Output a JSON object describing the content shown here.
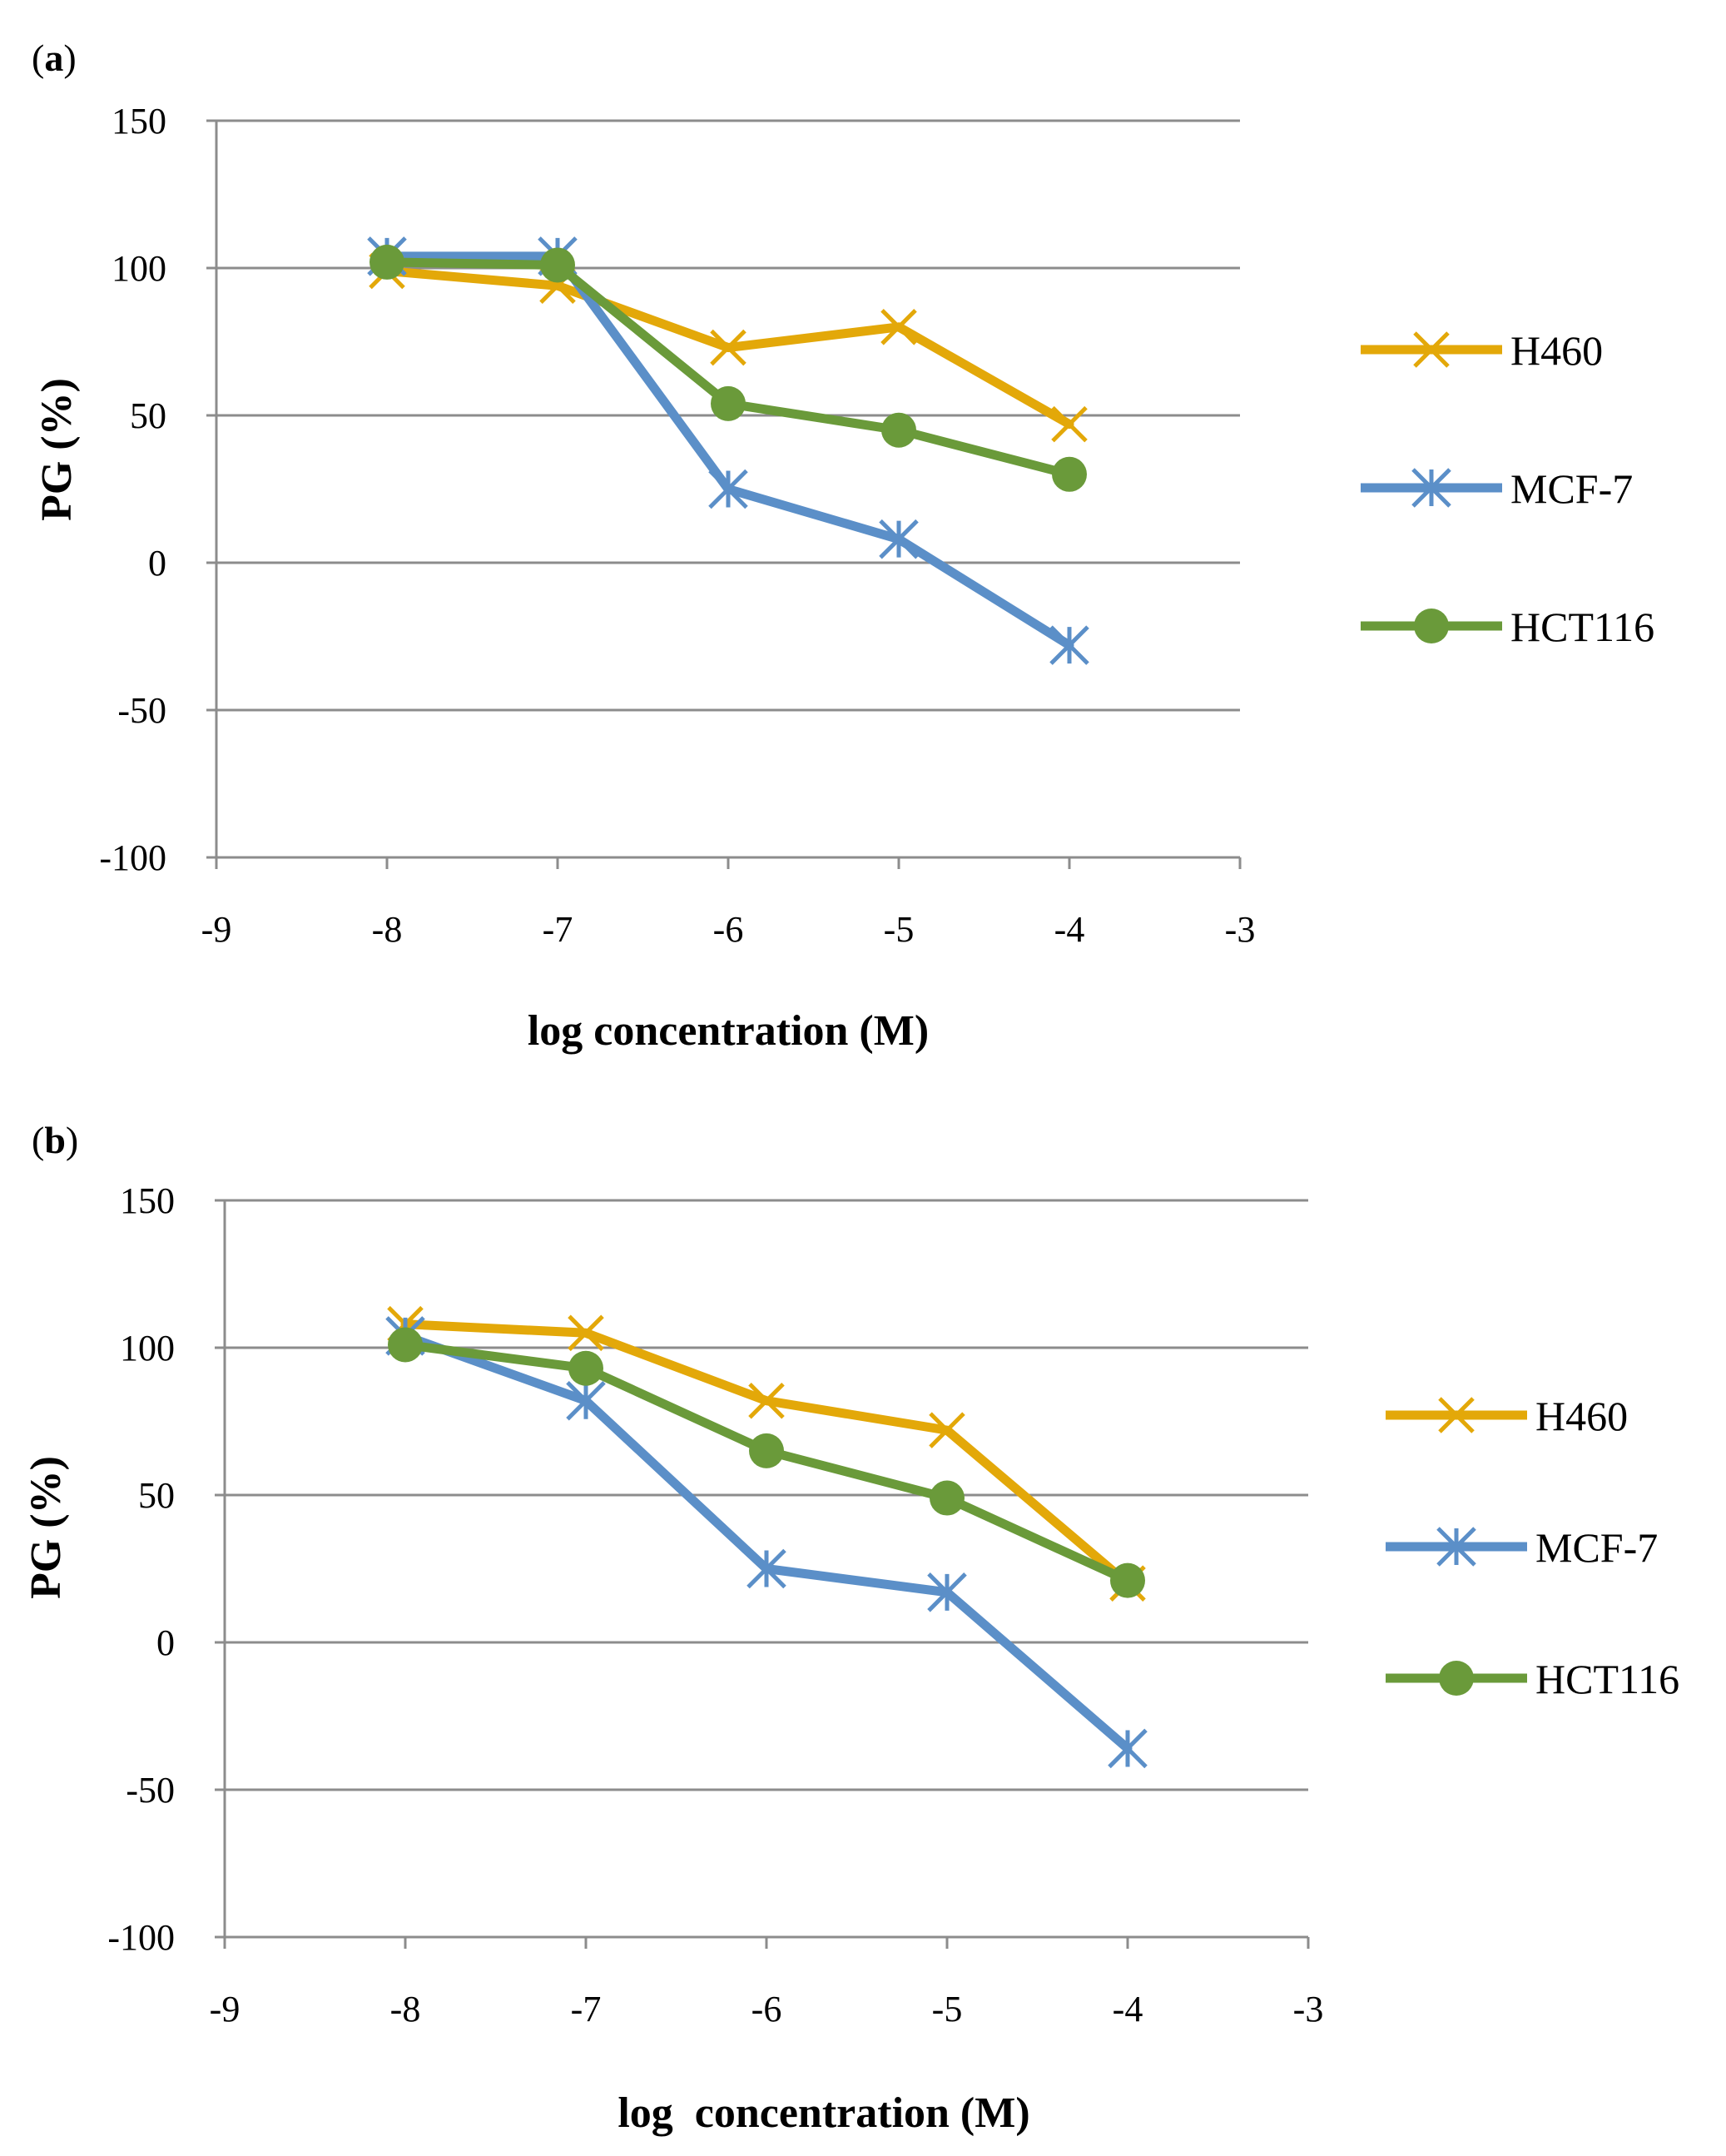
{
  "chart_data": [
    {
      "type": "line",
      "panel_label_open": "(",
      "panel_label_letter": "a",
      "panel_label_close": ")",
      "xlabel": "log concentration (M)",
      "ylabel": "PG (%)",
      "xlim": [
        -9,
        -3
      ],
      "ylim": [
        -100,
        150
      ],
      "xticks": [
        -9,
        -8,
        -7,
        -6,
        -5,
        -4,
        -3
      ],
      "yticks": [
        -100,
        -50,
        0,
        50,
        100,
        150
      ],
      "xtick_labels": [
        "-9",
        "-8",
        "-7",
        "-6",
        "-5",
        "-4",
        "-3"
      ],
      "ytick_labels": [
        "-100",
        "-50",
        "0",
        "50",
        "100",
        "150"
      ],
      "grid": "horizontal",
      "legend_position": "right",
      "x": [
        -8,
        -7,
        -6,
        -5,
        -4
      ],
      "series": [
        {
          "name": "H460",
          "marker": "x",
          "color": "#E3A809",
          "values": [
            99,
            94,
            73,
            80,
            47
          ]
        },
        {
          "name": "MCF-7",
          "marker": "asterisk",
          "color": "#5B8FC8",
          "values": [
            104,
            104,
            25,
            8,
            -28
          ]
        },
        {
          "name": "HCT116",
          "marker": "circle",
          "color": "#6A9A3A",
          "values": [
            102,
            101,
            54,
            45,
            30
          ]
        }
      ]
    },
    {
      "type": "line",
      "panel_label_open": "(",
      "panel_label_letter": "b",
      "panel_label_close": ")",
      "xlabel": "log  concentration (M)",
      "ylabel": "PG (%)",
      "xlim": [
        -9,
        -3
      ],
      "ylim": [
        -100,
        150
      ],
      "xticks": [
        -9,
        -8,
        -7,
        -6,
        -5,
        -4,
        -3
      ],
      "yticks": [
        -100,
        -50,
        0,
        50,
        100,
        150
      ],
      "xtick_labels": [
        "-9",
        "-8",
        "-7",
        "-6",
        "-5",
        "-4",
        "-3"
      ],
      "ytick_labels": [
        "-100",
        "-50",
        "0",
        "50",
        "100",
        "150"
      ],
      "grid": "horizontal",
      "legend_position": "right",
      "x": [
        -8,
        -7,
        -6,
        -5,
        -4
      ],
      "series": [
        {
          "name": "H460",
          "marker": "x",
          "color": "#E3A809",
          "values": [
            108,
            105,
            82,
            72,
            20
          ]
        },
        {
          "name": "MCF-7",
          "marker": "asterisk",
          "color": "#5B8FC8",
          "values": [
            104,
            82,
            25,
            17,
            -36
          ]
        },
        {
          "name": "HCT116",
          "marker": "circle",
          "color": "#6A9A3A",
          "values": [
            101,
            93,
            65,
            49,
            21
          ]
        }
      ]
    }
  ]
}
